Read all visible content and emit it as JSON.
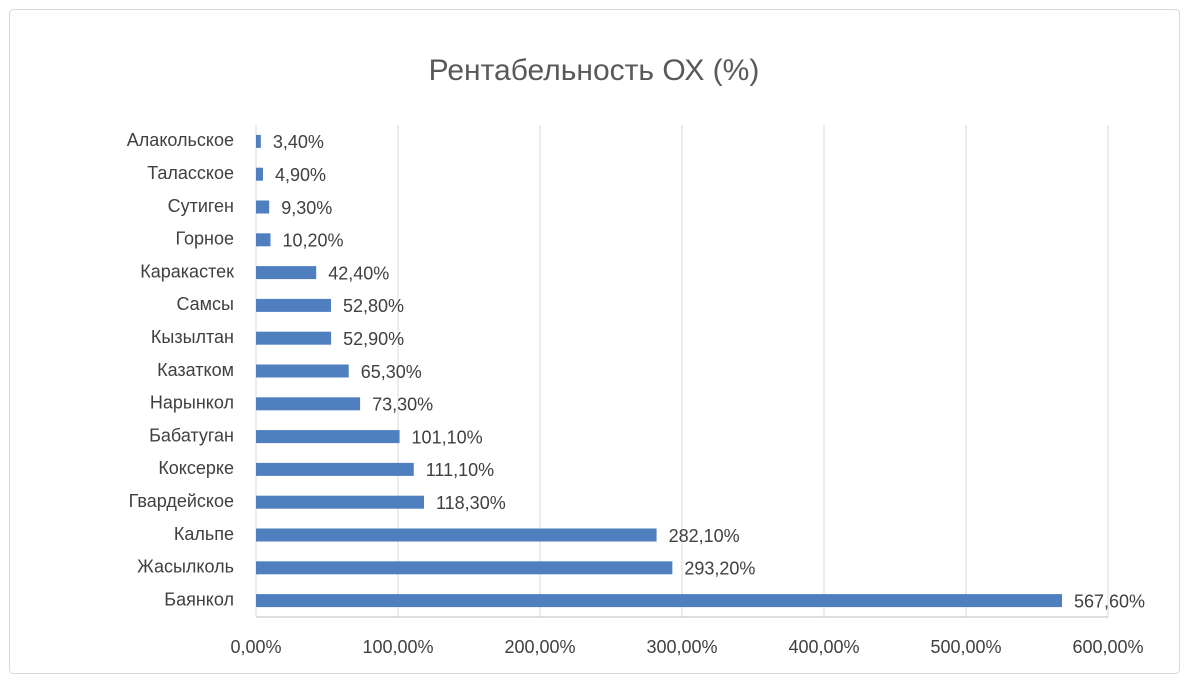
{
  "chart_data": {
    "type": "barh",
    "title": "Рентабельность ОХ (%)",
    "categories": [
      "Алакольское",
      "Таласское",
      "Сутиген",
      "Горное",
      "Каракастек",
      "Самсы",
      "Кызылтан",
      "Казатком",
      "Нарынкол",
      "Бабатуган",
      "Коксерке",
      "Гвардейское",
      "Кальпе",
      "Жасылколь",
      "Баянкол"
    ],
    "values": [
      3.4,
      4.9,
      9.3,
      10.2,
      42.4,
      52.8,
      52.9,
      65.3,
      73.3,
      101.1,
      111.1,
      118.3,
      282.1,
      293.2,
      567.6
    ],
    "value_labels": [
      "3,40%",
      "4,90%",
      "9,30%",
      "10,20%",
      "42,40%",
      "52,80%",
      "52,90%",
      "65,30%",
      "73,30%",
      "101,10%",
      "111,10%",
      "118,30%",
      "282,10%",
      "293,20%",
      "567,60%"
    ],
    "color": "#4f7fbf",
    "xlim": [
      0,
      600
    ],
    "xticks": [
      {
        "value": 0,
        "label": "0,00%"
      },
      {
        "value": 100,
        "label": "100,00%"
      },
      {
        "value": 200,
        "label": "200,00%"
      },
      {
        "value": 300,
        "label": "300,00%"
      },
      {
        "value": 400,
        "label": "400,00%"
      },
      {
        "value": 500,
        "label": "500,00%"
      },
      {
        "value": 600,
        "label": "600,00%"
      }
    ],
    "grid": true
  }
}
